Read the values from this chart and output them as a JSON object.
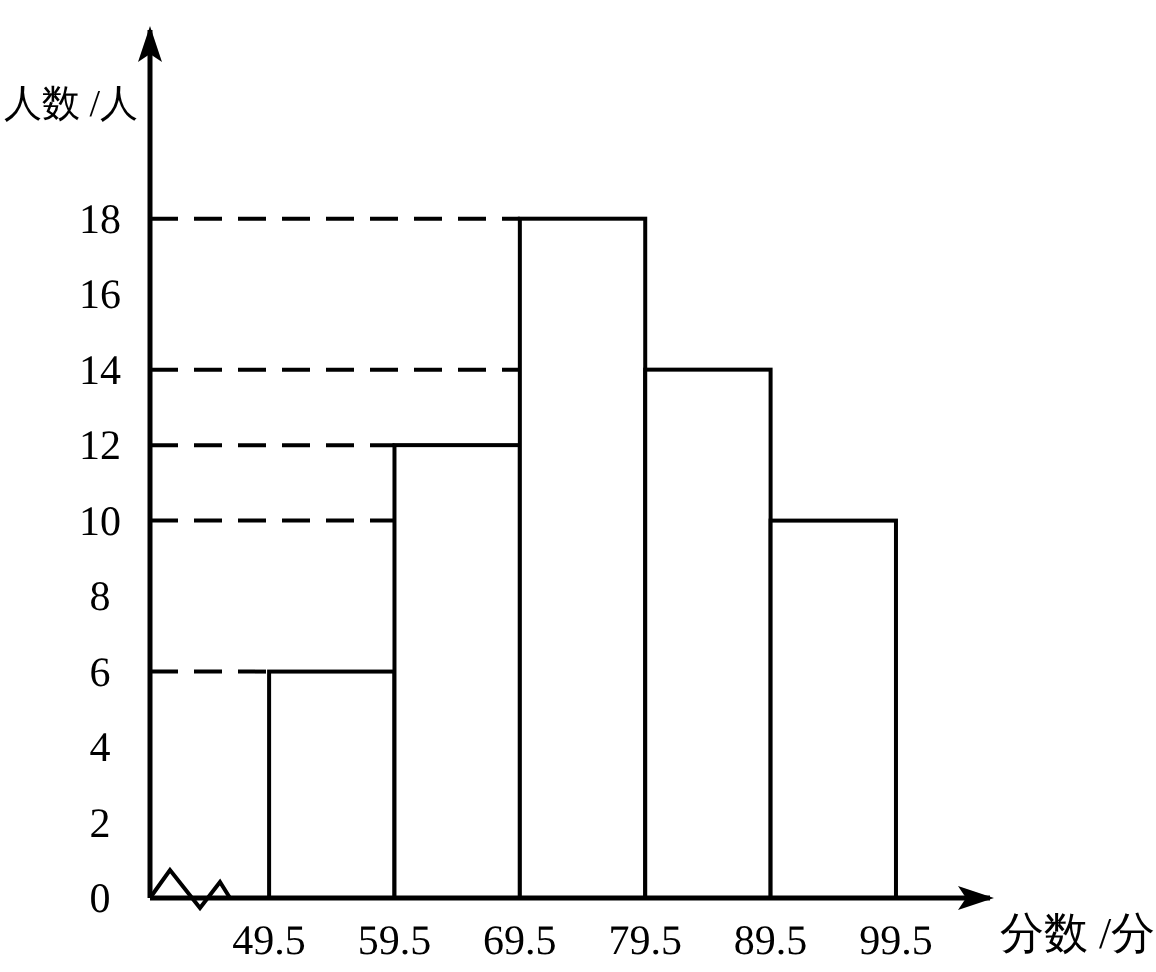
{
  "chart_data": {
    "type": "histogram",
    "xlabel": "分数 /分",
    "ylabel": "人数 /人",
    "bins": [
      49.5,
      59.5,
      69.5,
      79.5,
      89.5,
      99.5
    ],
    "values": [
      6,
      12,
      18,
      14,
      10
    ],
    "color": "#ffffff",
    "xlim": [
      40,
      107
    ],
    "ylim": [
      0,
      23
    ],
    "xticks": [
      49.5,
      59.5,
      69.5,
      79.5,
      89.5,
      99.5
    ],
    "yticks": [
      0,
      2,
      4,
      6,
      8,
      10,
      12,
      14,
      16,
      18
    ],
    "ref_lines": [
      {
        "axis": "y",
        "value": 6,
        "line_style": "dashed"
      },
      {
        "axis": "y",
        "value": 12,
        "line_style": "dashed"
      },
      {
        "axis": "y",
        "value": 18,
        "line_style": "dashed"
      },
      {
        "axis": "y",
        "value": 14,
        "line_style": "dashed"
      },
      {
        "axis": "y",
        "value": 10,
        "line_style": "dashed"
      }
    ],
    "grid": false
  }
}
